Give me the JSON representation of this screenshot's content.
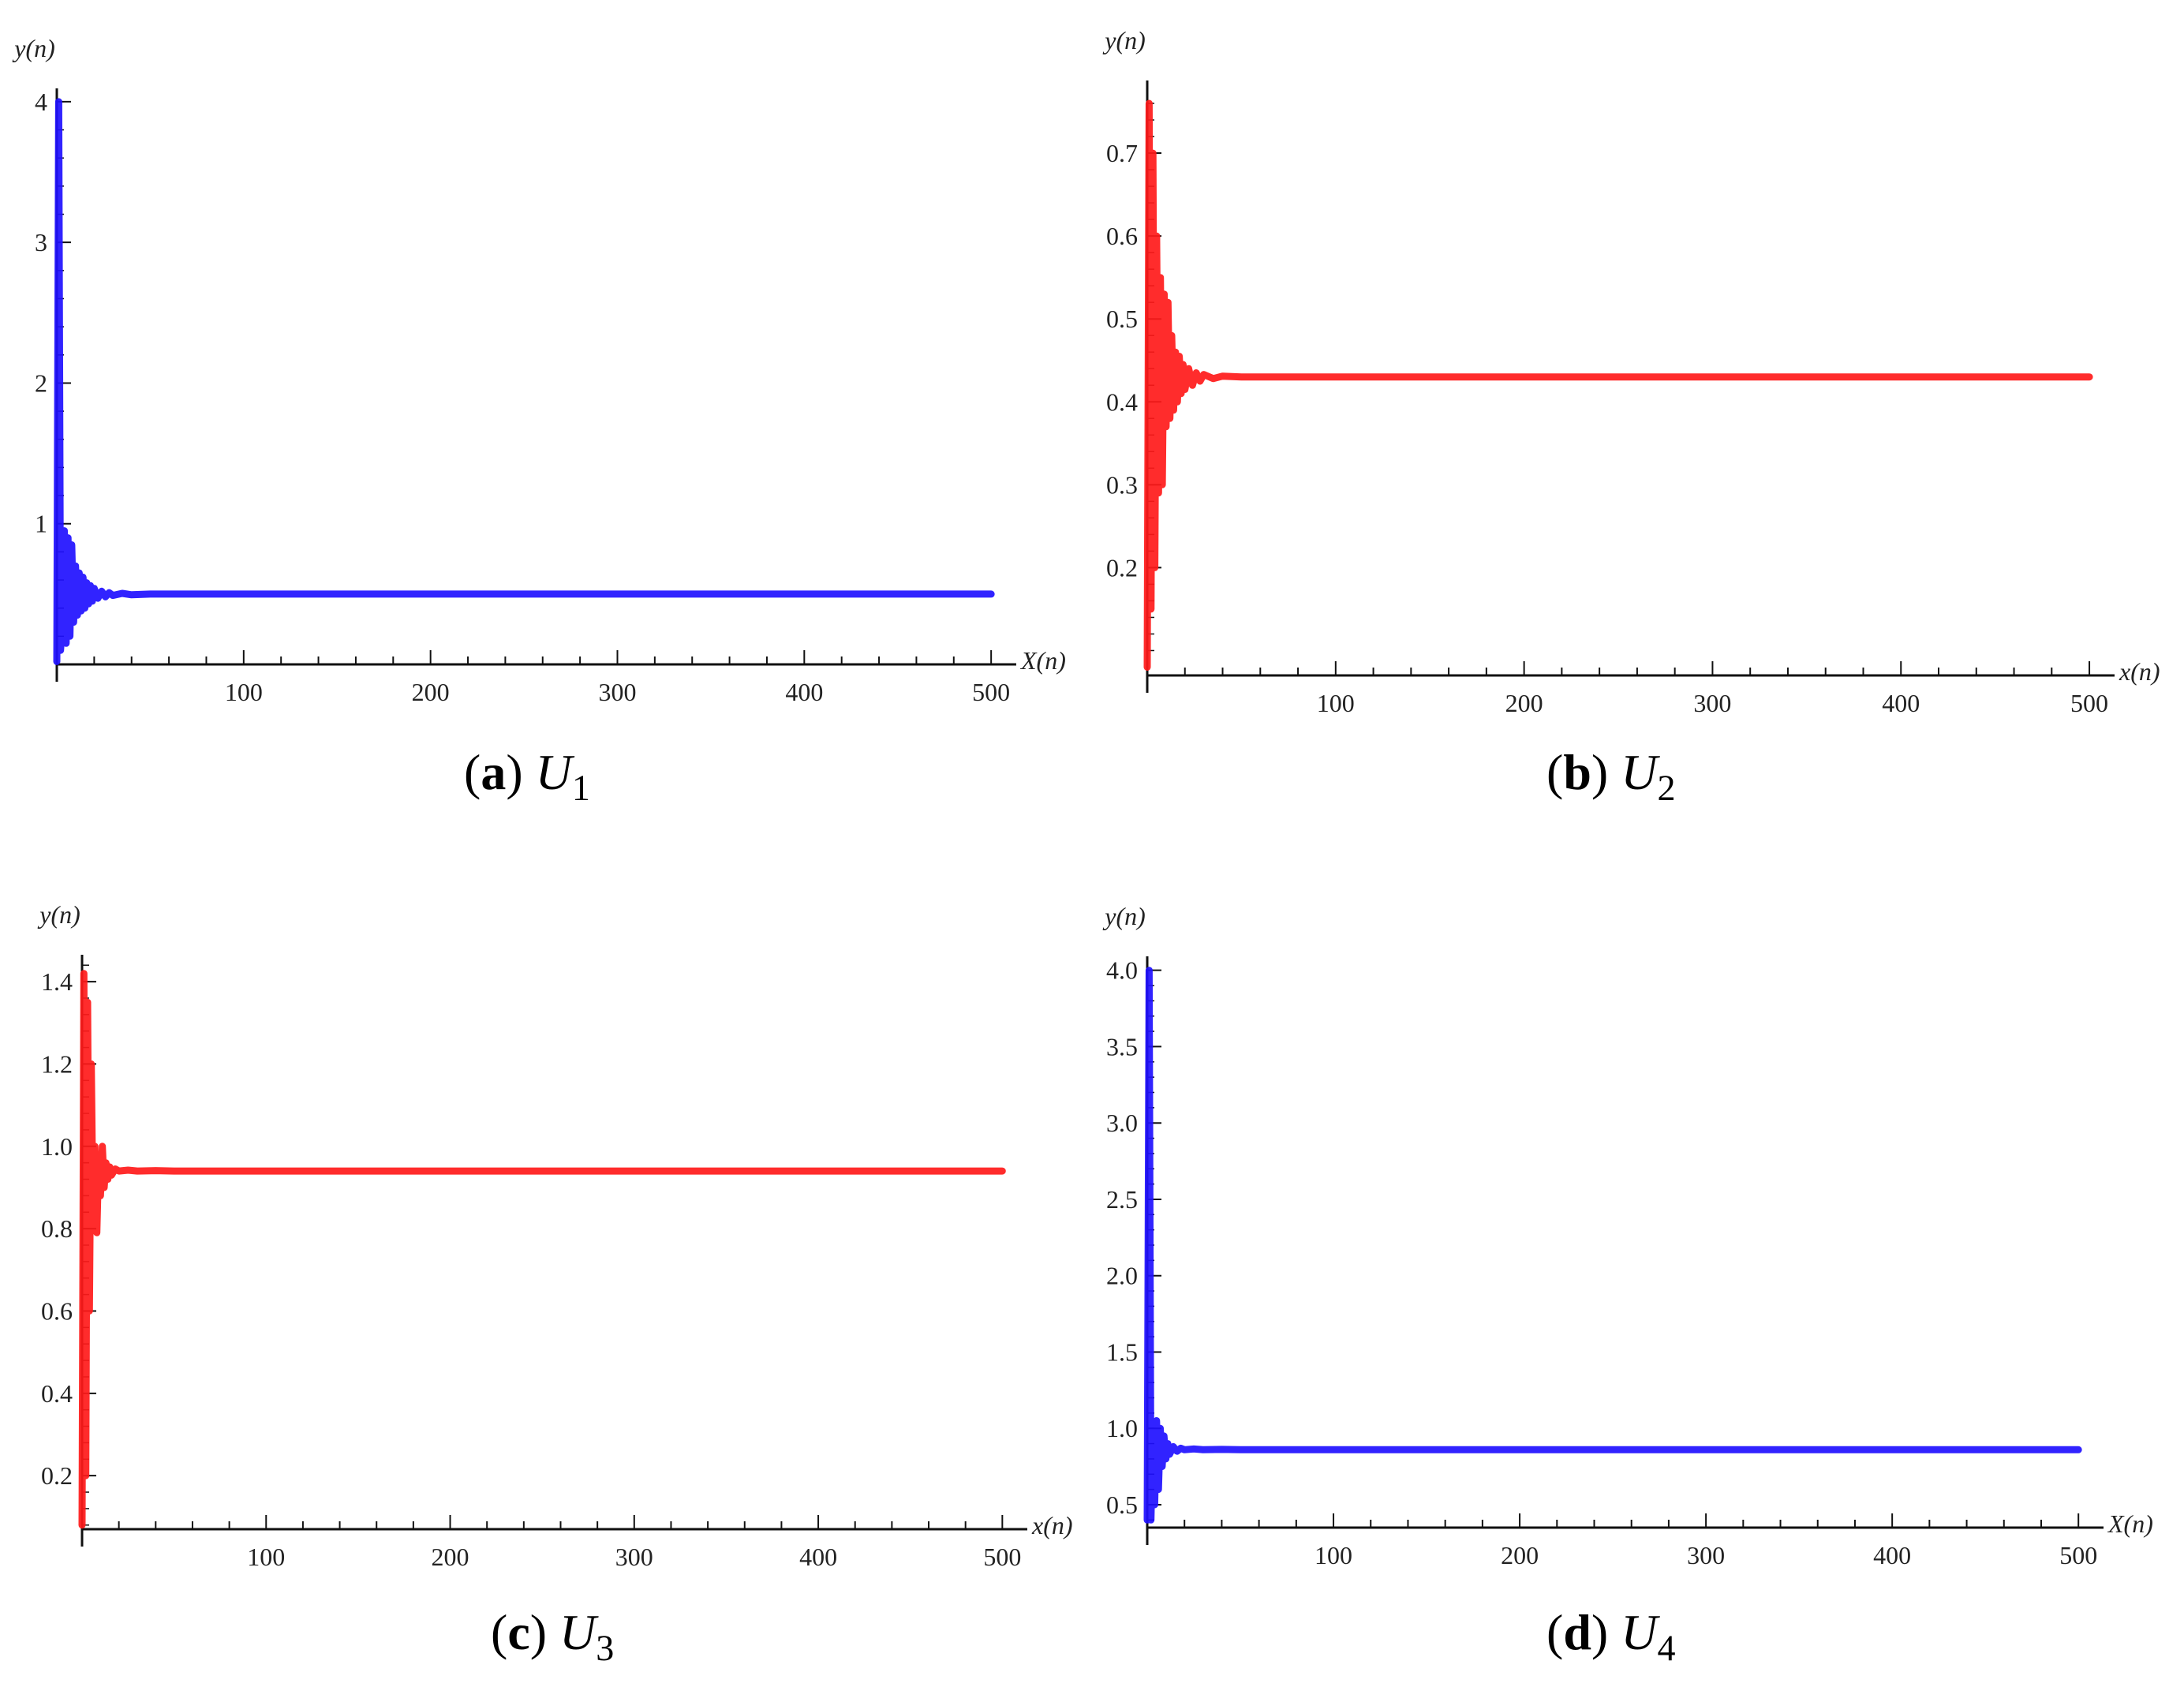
{
  "chart_data": [
    {
      "id": "a",
      "type": "line",
      "caption": {
        "label": "a",
        "symbol": "U",
        "subscript": "1"
      },
      "xlabel": "X(n)",
      "ylabel": "y(n)",
      "xlim": [
        0,
        505
      ],
      "ylim": [
        0,
        4.05
      ],
      "xticks": [
        100,
        200,
        300,
        400,
        500
      ],
      "xtick_labels": [
        "100",
        "200",
        "300",
        "400",
        "500"
      ],
      "yticks": [
        1,
        2,
        3,
        4
      ],
      "ytick_labels": [
        "1",
        "2",
        "3",
        "4"
      ],
      "color": "#1f10ff",
      "series": [
        {
          "x": [
            0,
            1,
            2,
            3,
            4,
            5,
            6,
            7,
            8,
            9,
            10,
            11,
            12,
            13,
            14,
            15,
            16,
            17,
            18,
            19,
            20,
            22,
            24,
            26,
            28,
            30,
            35,
            40,
            50,
            100,
            200,
            300,
            400,
            500
          ],
          "y": [
            0.02,
            4.0,
            0.1,
            0.3,
            0.95,
            0.15,
            0.9,
            0.2,
            0.85,
            0.3,
            0.7,
            0.35,
            0.65,
            0.38,
            0.62,
            0.4,
            0.58,
            0.43,
            0.56,
            0.45,
            0.54,
            0.47,
            0.52,
            0.48,
            0.51,
            0.49,
            0.505,
            0.495,
            0.5,
            0.5,
            0.5,
            0.5,
            0.5,
            0.5
          ]
        }
      ]
    },
    {
      "id": "b",
      "type": "line",
      "caption": {
        "label": "b",
        "symbol": "U",
        "subscript": "2"
      },
      "xlabel": "x(n)",
      "ylabel": "y(n)",
      "xlim": [
        0,
        505
      ],
      "ylim": [
        0.07,
        0.78
      ],
      "xticks": [
        100,
        200,
        300,
        400,
        500
      ],
      "xtick_labels": [
        "100",
        "200",
        "300",
        "400",
        "500"
      ],
      "yticks": [
        0.2,
        0.3,
        0.4,
        0.5,
        0.6,
        0.7
      ],
      "ytick_labels": [
        "0.2",
        "0.3",
        "0.4",
        "0.5",
        "0.6",
        "0.7"
      ],
      "color": "#ff1a1a",
      "series": [
        {
          "x": [
            0,
            1,
            2,
            3,
            4,
            5,
            6,
            7,
            8,
            9,
            10,
            11,
            12,
            13,
            14,
            15,
            16,
            17,
            18,
            19,
            20,
            22,
            24,
            26,
            28,
            30,
            35,
            40,
            50,
            100,
            200,
            300,
            400,
            500
          ],
          "y": [
            0.08,
            0.76,
            0.15,
            0.7,
            0.2,
            0.6,
            0.29,
            0.55,
            0.3,
            0.53,
            0.37,
            0.52,
            0.38,
            0.48,
            0.39,
            0.46,
            0.4,
            0.455,
            0.41,
            0.445,
            0.415,
            0.44,
            0.42,
            0.435,
            0.425,
            0.433,
            0.428,
            0.431,
            0.43,
            0.43,
            0.43,
            0.43,
            0.43,
            0.43
          ]
        }
      ]
    },
    {
      "id": "c",
      "type": "line",
      "caption": {
        "label": "c",
        "symbol": "U",
        "subscript": "3"
      },
      "xlabel": "x(n)",
      "ylabel": "y(n)",
      "xlim": [
        0,
        505
      ],
      "ylim": [
        0.07,
        1.45
      ],
      "xticks": [
        100,
        200,
        300,
        400,
        500
      ],
      "xtick_labels": [
        "100",
        "200",
        "300",
        "400",
        "500"
      ],
      "yticks": [
        0.2,
        0.4,
        0.6,
        0.8,
        1.0,
        1.2,
        1.4
      ],
      "ytick_labels": [
        "0.2",
        "0.4",
        "0.6",
        "0.8",
        "1.0",
        "1.2",
        "1.4"
      ],
      "color": "#ff1a1a",
      "series": [
        {
          "x": [
            0,
            1,
            2,
            3,
            4,
            5,
            6,
            7,
            8,
            9,
            10,
            11,
            12,
            13,
            14,
            15,
            16,
            18,
            20,
            25,
            30,
            40,
            50,
            100,
            200,
            300,
            400,
            500
          ],
          "y": [
            0.08,
            1.42,
            0.2,
            1.35,
            0.6,
            1.2,
            0.8,
            1.0,
            0.79,
            0.97,
            0.88,
            1.0,
            0.9,
            0.96,
            0.92,
            0.95,
            0.93,
            0.945,
            0.94,
            0.942,
            0.94,
            0.941,
            0.94,
            0.94,
            0.94,
            0.94,
            0.94,
            0.94
          ]
        }
      ]
    },
    {
      "id": "d",
      "type": "line",
      "caption": {
        "label": "d",
        "symbol": "U",
        "subscript": "4"
      },
      "xlabel": "X(n)",
      "ylabel": "y(n)",
      "xlim": [
        0,
        505
      ],
      "ylim": [
        0.35,
        4.05
      ],
      "xticks": [
        100,
        200,
        300,
        400,
        500
      ],
      "xtick_labels": [
        "100",
        "200",
        "300",
        "400",
        "500"
      ],
      "yticks": [
        0.5,
        1.0,
        1.5,
        2.0,
        2.5,
        3.0,
        3.5,
        4.0
      ],
      "ytick_labels": [
        "0.5",
        "1.0",
        "1.5",
        "2.0",
        "2.5",
        "3.0",
        "3.5",
        "4.0"
      ],
      "color": "#1f10ff",
      "series": [
        {
          "x": [
            0,
            1,
            2,
            3,
            4,
            5,
            6,
            7,
            8,
            9,
            10,
            11,
            12,
            14,
            16,
            18,
            20,
            25,
            30,
            40,
            50,
            100,
            200,
            300,
            400,
            500
          ],
          "y": [
            0.4,
            4.0,
            0.4,
            1.0,
            0.5,
            1.05,
            0.6,
            1.0,
            0.75,
            0.95,
            0.8,
            0.9,
            0.83,
            0.88,
            0.85,
            0.87,
            0.86,
            0.865,
            0.86,
            0.862,
            0.86,
            0.86,
            0.86,
            0.86,
            0.86,
            0.86
          ]
        }
      ]
    }
  ]
}
